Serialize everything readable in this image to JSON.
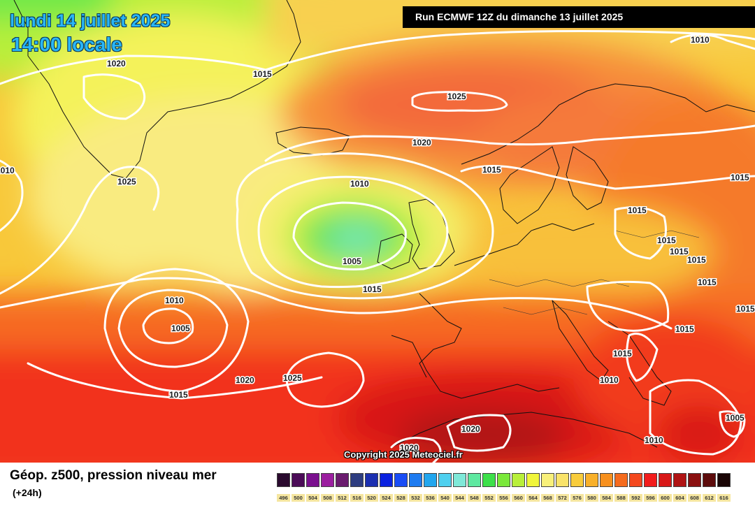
{
  "header": {
    "date": "lundi 14 juillet 2025",
    "time": "14:00 locale",
    "run": "Run ECMWF 12Z du dimanche 13 juillet 2025"
  },
  "copyright": "Copyright 2025 Meteociel.fr",
  "legend": {
    "title": "Géop. z500, pression niveau mer",
    "subtitle": "(+24h)",
    "scale": [
      {
        "label": "496",
        "color": "#2a0a2e"
      },
      {
        "label": "500",
        "color": "#4b0b57"
      },
      {
        "label": "504",
        "color": "#7a0f8e"
      },
      {
        "label": "508",
        "color": "#9b1e9f"
      },
      {
        "label": "512",
        "color": "#6a1b6e"
      },
      {
        "label": "516",
        "color": "#2e3d80"
      },
      {
        "label": "520",
        "color": "#1b2fb0"
      },
      {
        "label": "524",
        "color": "#0b22e0"
      },
      {
        "label": "528",
        "color": "#1a4df5"
      },
      {
        "label": "532",
        "color": "#1e7bf0"
      },
      {
        "label": "536",
        "color": "#22a6ee"
      },
      {
        "label": "540",
        "color": "#4fd0ef"
      },
      {
        "label": "544",
        "color": "#7fe8d8"
      },
      {
        "label": "548",
        "color": "#5ee8a0"
      },
      {
        "label": "552",
        "color": "#3de04a"
      },
      {
        "label": "556",
        "color": "#7ae83a"
      },
      {
        "label": "560",
        "color": "#b8ef3a"
      },
      {
        "label": "564",
        "color": "#f0f53a"
      },
      {
        "label": "568",
        "color": "#f8f07a"
      },
      {
        "label": "572",
        "color": "#f9e36a"
      },
      {
        "label": "576",
        "color": "#f8cc3c"
      },
      {
        "label": "580",
        "color": "#f8b02a"
      },
      {
        "label": "584",
        "color": "#f7901e"
      },
      {
        "label": "588",
        "color": "#f56b1e"
      },
      {
        "label": "592",
        "color": "#f4481e"
      },
      {
        "label": "596",
        "color": "#f21c1c"
      },
      {
        "label": "600",
        "color": "#d81818"
      },
      {
        "label": "604",
        "color": "#b01414"
      },
      {
        "label": "608",
        "color": "#8a1010"
      },
      {
        "label": "612",
        "color": "#5c0b0b"
      },
      {
        "label": "616",
        "color": "#1a0505"
      }
    ]
  },
  "isobar_labels": [
    {
      "text": "1010"
    },
    {
      "text": "1020"
    },
    {
      "text": "1015"
    },
    {
      "text": "1025"
    },
    {
      "text": "1020"
    },
    {
      "text": "1015"
    },
    {
      "text": "1025"
    },
    {
      "text": "1010"
    },
    {
      "text": "1010"
    },
    {
      "text": "1005"
    },
    {
      "text": "1015"
    },
    {
      "text": "1015"
    },
    {
      "text": "1015"
    },
    {
      "text": "1015"
    },
    {
      "text": "1015"
    },
    {
      "text": "1015"
    },
    {
      "text": "1015"
    },
    {
      "text": "1010"
    },
    {
      "text": "1005"
    },
    {
      "text": "1015"
    },
    {
      "text": "1020"
    },
    {
      "text": "1025"
    },
    {
      "text": "1015"
    },
    {
      "text": "1015"
    },
    {
      "text": "1015"
    },
    {
      "text": "1010"
    },
    {
      "text": "1005"
    },
    {
      "text": "1020"
    },
    {
      "text": "1020"
    },
    {
      "text": "1010"
    }
  ]
}
